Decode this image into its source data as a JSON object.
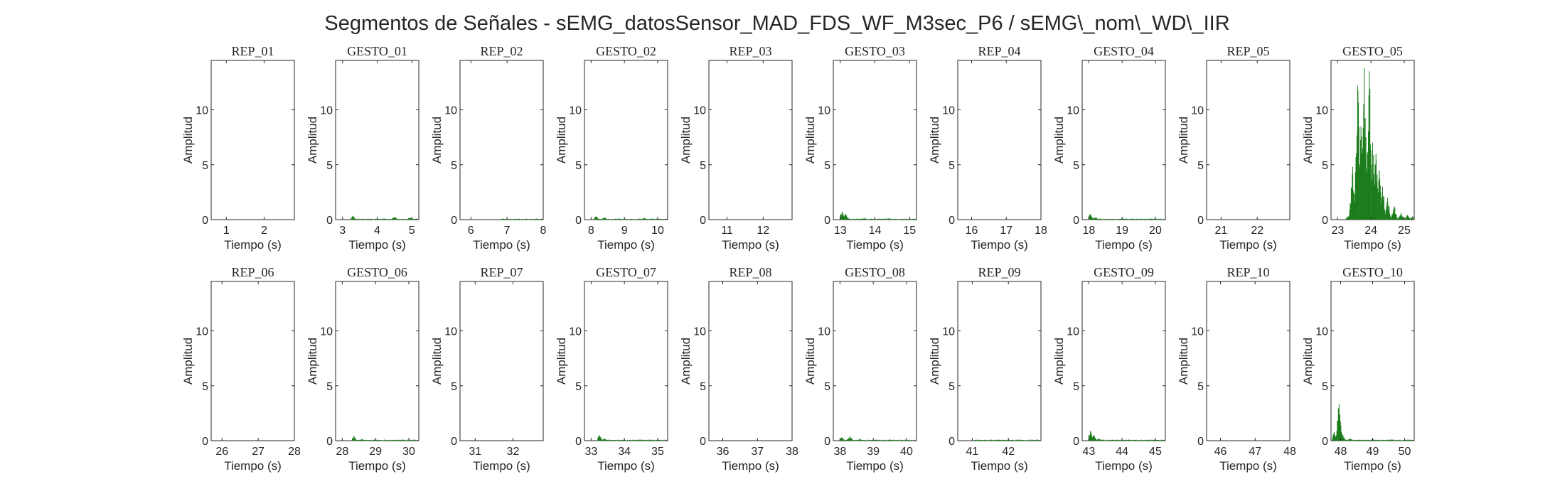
{
  "figure": {
    "title": "Segmentos de Señales - sEMG_datosSensor_MAD_FDS_WF_M3sec_P6 / sEMG\\_nom\\_WD\\_IIR"
  },
  "colors": {
    "signal": "#1b7d1b",
    "axes": "#262626",
    "background": "#ffffff"
  },
  "chart_data": [
    {
      "type": "area",
      "title": "REP_01",
      "xlabel": "Tiempo (s)",
      "ylabel": "Amplitud",
      "xlim": [
        0.6,
        2.8
      ],
      "ylim": [
        0,
        14.5
      ],
      "xticks": [
        1,
        2
      ],
      "yticks": [
        0,
        5,
        10
      ],
      "peaks": []
    },
    {
      "type": "area",
      "title": "GESTO_01",
      "xlabel": "Tiempo (s)",
      "ylabel": "Amplitud",
      "xlim": [
        2.8,
        5.2
      ],
      "ylim": [
        0,
        14.5
      ],
      "xticks": [
        3,
        4,
        5
      ],
      "yticks": [
        0,
        5,
        10
      ],
      "peaks": [
        [
          3.3,
          0.35
        ],
        [
          4.5,
          0.25
        ],
        [
          4.95,
          0.2
        ]
      ]
    },
    {
      "type": "area",
      "title": "REP_02",
      "xlabel": "Tiempo (s)",
      "ylabel": "Amplitud",
      "xlim": [
        5.7,
        8.0
      ],
      "ylim": [
        0,
        14.5
      ],
      "xticks": [
        6,
        7,
        8
      ],
      "yticks": [
        0,
        5,
        10
      ],
      "peaks": [
        [
          6.9,
          0.05
        ]
      ]
    },
    {
      "type": "area",
      "title": "GESTO_02",
      "xlabel": "Tiempo (s)",
      "ylabel": "Amplitud",
      "xlim": [
        7.8,
        10.3
      ],
      "ylim": [
        0,
        14.5
      ],
      "xticks": [
        8,
        9,
        10
      ],
      "yticks": [
        0,
        5,
        10
      ],
      "peaks": [
        [
          8.15,
          0.3
        ],
        [
          8.4,
          0.2
        ],
        [
          9.6,
          0.15
        ]
      ]
    },
    {
      "type": "area",
      "title": "REP_03",
      "xlabel": "Tiempo (s)",
      "ylabel": "Amplitud",
      "xlim": [
        10.5,
        12.8
      ],
      "ylim": [
        0,
        14.5
      ],
      "xticks": [
        11,
        12
      ],
      "yticks": [
        0,
        5,
        10
      ],
      "peaks": []
    },
    {
      "type": "area",
      "title": "GESTO_03",
      "xlabel": "Tiempo (s)",
      "ylabel": "Amplitud",
      "xlim": [
        12.8,
        15.2
      ],
      "ylim": [
        0,
        14.5
      ],
      "xticks": [
        13,
        14,
        15
      ],
      "yticks": [
        0,
        5,
        10
      ],
      "peaks": [
        [
          13.05,
          0.7
        ],
        [
          13.15,
          0.55
        ],
        [
          13.7,
          0.15
        ],
        [
          14.4,
          0.12
        ]
      ]
    },
    {
      "type": "area",
      "title": "REP_04",
      "xlabel": "Tiempo (s)",
      "ylabel": "Amplitud",
      "xlim": [
        15.6,
        18.0
      ],
      "ylim": [
        0,
        14.5
      ],
      "xticks": [
        16,
        17,
        18
      ],
      "yticks": [
        0,
        5,
        10
      ],
      "peaks": []
    },
    {
      "type": "area",
      "title": "GESTO_04",
      "xlabel": "Tiempo (s)",
      "ylabel": "Amplitud",
      "xlim": [
        17.8,
        20.3
      ],
      "ylim": [
        0,
        14.5
      ],
      "xticks": [
        18,
        19,
        20
      ],
      "yticks": [
        0,
        5,
        10
      ],
      "peaks": [
        [
          18.05,
          0.5
        ],
        [
          18.2,
          0.2
        ],
        [
          19.3,
          0.1
        ]
      ]
    },
    {
      "type": "area",
      "title": "REP_05",
      "xlabel": "Tiempo (s)",
      "ylabel": "Amplitud",
      "xlim": [
        20.6,
        22.9
      ],
      "ylim": [
        0,
        14.5
      ],
      "xticks": [
        21,
        22
      ],
      "yticks": [
        0,
        5,
        10
      ],
      "peaks": []
    },
    {
      "type": "area",
      "title": "GESTO_05",
      "xlabel": "Tiempo (s)",
      "ylabel": "Amplitud",
      "xlim": [
        22.8,
        25.3
      ],
      "ylim": [
        0,
        14.5
      ],
      "xticks": [
        23,
        24,
        25
      ],
      "yticks": [
        0,
        5,
        10
      ],
      "peaks": [
        [
          23.3,
          0.3
        ],
        [
          23.45,
          4.8
        ],
        [
          23.55,
          1.5
        ],
        [
          23.6,
          12.2
        ],
        [
          23.7,
          8.5
        ],
        [
          23.8,
          13.8
        ],
        [
          23.85,
          7.5
        ],
        [
          23.95,
          13.5
        ],
        [
          24.05,
          7.0
        ],
        [
          24.15,
          6.0
        ],
        [
          24.25,
          4.5
        ],
        [
          24.35,
          3.0
        ],
        [
          24.5,
          2.0
        ],
        [
          24.7,
          1.2
        ],
        [
          24.9,
          0.6
        ],
        [
          25.1,
          0.4
        ],
        [
          25.25,
          0.3
        ]
      ]
    },
    {
      "type": "area",
      "title": "REP_06",
      "xlabel": "Tiempo (s)",
      "ylabel": "Amplitud",
      "xlim": [
        25.7,
        28.0
      ],
      "ylim": [
        0,
        14.5
      ],
      "xticks": [
        26,
        27,
        28
      ],
      "yticks": [
        0,
        5,
        10
      ],
      "peaks": []
    },
    {
      "type": "area",
      "title": "GESTO_06",
      "xlabel": "Tiempo (s)",
      "ylabel": "Amplitud",
      "xlim": [
        27.8,
        30.3
      ],
      "ylim": [
        0,
        14.5
      ],
      "xticks": [
        28,
        29,
        30
      ],
      "yticks": [
        0,
        5,
        10
      ],
      "peaks": [
        [
          28.35,
          0.4
        ],
        [
          28.6,
          0.15
        ],
        [
          29.8,
          0.12
        ]
      ]
    },
    {
      "type": "area",
      "title": "REP_07",
      "xlabel": "Tiempo (s)",
      "ylabel": "Amplitud",
      "xlim": [
        30.6,
        32.8
      ],
      "ylim": [
        0,
        14.5
      ],
      "xticks": [
        31,
        32
      ],
      "yticks": [
        0,
        5,
        10
      ],
      "peaks": []
    },
    {
      "type": "area",
      "title": "GESTO_07",
      "xlabel": "Tiempo (s)",
      "ylabel": "Amplitud",
      "xlim": [
        32.8,
        35.3
      ],
      "ylim": [
        0,
        14.5
      ],
      "xticks": [
        33,
        34,
        35
      ],
      "yticks": [
        0,
        5,
        10
      ],
      "peaks": [
        [
          33.25,
          0.5
        ],
        [
          33.4,
          0.2
        ],
        [
          34.5,
          0.1
        ]
      ]
    },
    {
      "type": "area",
      "title": "REP_08",
      "xlabel": "Tiempo (s)",
      "ylabel": "Amplitud",
      "xlim": [
        35.6,
        38.0
      ],
      "ylim": [
        0,
        14.5
      ],
      "xticks": [
        36,
        37,
        38
      ],
      "yticks": [
        0,
        5,
        10
      ],
      "peaks": []
    },
    {
      "type": "area",
      "title": "GESTO_08",
      "xlabel": "Tiempo (s)",
      "ylabel": "Amplitud",
      "xlim": [
        37.8,
        40.3
      ],
      "ylim": [
        0,
        14.5
      ],
      "xticks": [
        38,
        39,
        40
      ],
      "yticks": [
        0,
        5,
        10
      ],
      "peaks": [
        [
          38.05,
          0.3
        ],
        [
          38.3,
          0.4
        ],
        [
          38.6,
          0.15
        ],
        [
          39.5,
          0.12
        ]
      ]
    },
    {
      "type": "area",
      "title": "REP_09",
      "xlabel": "Tiempo (s)",
      "ylabel": "Amplitud",
      "xlim": [
        40.6,
        42.9
      ],
      "ylim": [
        0,
        14.5
      ],
      "xticks": [
        41,
        42
      ],
      "yticks": [
        0,
        5,
        10
      ],
      "peaks": [
        [
          41.1,
          0.05
        ]
      ]
    },
    {
      "type": "area",
      "title": "GESTO_09",
      "xlabel": "Tiempo (s)",
      "ylabel": "Amplitud",
      "xlim": [
        42.8,
        45.3
      ],
      "ylim": [
        0,
        14.5
      ],
      "xticks": [
        43,
        44,
        45
      ],
      "yticks": [
        0,
        5,
        10
      ],
      "peaks": [
        [
          43.05,
          0.9
        ],
        [
          43.15,
          0.5
        ],
        [
          43.3,
          0.2
        ],
        [
          44.2,
          0.1
        ]
      ]
    },
    {
      "type": "area",
      "title": "REP_10",
      "xlabel": "Tiempo (s)",
      "ylabel": "Amplitud",
      "xlim": [
        45.6,
        48.0
      ],
      "ylim": [
        0,
        14.5
      ],
      "xticks": [
        46,
        47,
        48
      ],
      "yticks": [
        0,
        5,
        10
      ],
      "peaks": []
    },
    {
      "type": "area",
      "title": "GESTO_10",
      "xlabel": "Tiempo (s)",
      "ylabel": "Amplitud",
      "xlim": [
        47.7,
        50.3
      ],
      "ylim": [
        0,
        14.5
      ],
      "xticks": [
        48,
        49,
        50
      ],
      "yticks": [
        0,
        5,
        10
      ],
      "peaks": [
        [
          47.8,
          0.8
        ],
        [
          47.95,
          3.3
        ],
        [
          48.05,
          0.6
        ],
        [
          48.3,
          0.2
        ],
        [
          49.0,
          0.15
        ],
        [
          49.6,
          0.12
        ]
      ]
    }
  ]
}
